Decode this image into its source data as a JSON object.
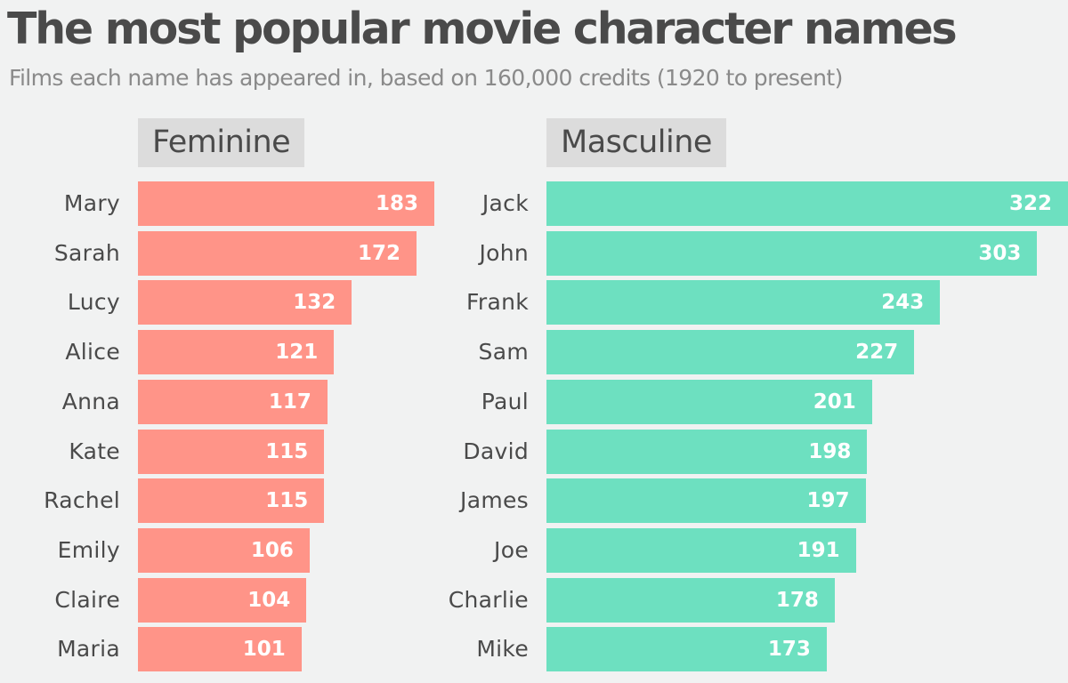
{
  "title": "The most popular movie character names",
  "subtitle": "Films each name has appeared in, based on 160,000 credits  (1920 to present)",
  "colors": {
    "background": "#f1f2f2",
    "feminine_bar": "#ff9488",
    "masculine_bar": "#6de0c0",
    "header_bg": "#dcdcdc",
    "text": "#4a4a4a"
  },
  "chart_data": [
    {
      "type": "bar",
      "orientation": "horizontal",
      "title": "Feminine",
      "categories": [
        "Mary",
        "Sarah",
        "Lucy",
        "Alice",
        "Anna",
        "Kate",
        "Rachel",
        "Emily",
        "Claire",
        "Maria"
      ],
      "values": [
        183,
        172,
        132,
        121,
        117,
        115,
        115,
        106,
        104,
        101
      ],
      "xlim": [
        0,
        322
      ],
      "grid": false
    },
    {
      "type": "bar",
      "orientation": "horizontal",
      "title": "Masculine",
      "categories": [
        "Jack",
        "John",
        "Frank",
        "Sam",
        "Paul",
        "David",
        "James",
        "Joe",
        "Charlie",
        "Mike"
      ],
      "values": [
        322,
        303,
        243,
        227,
        201,
        198,
        197,
        191,
        178,
        173
      ],
      "xlim": [
        0,
        322
      ],
      "grid": false
    }
  ]
}
